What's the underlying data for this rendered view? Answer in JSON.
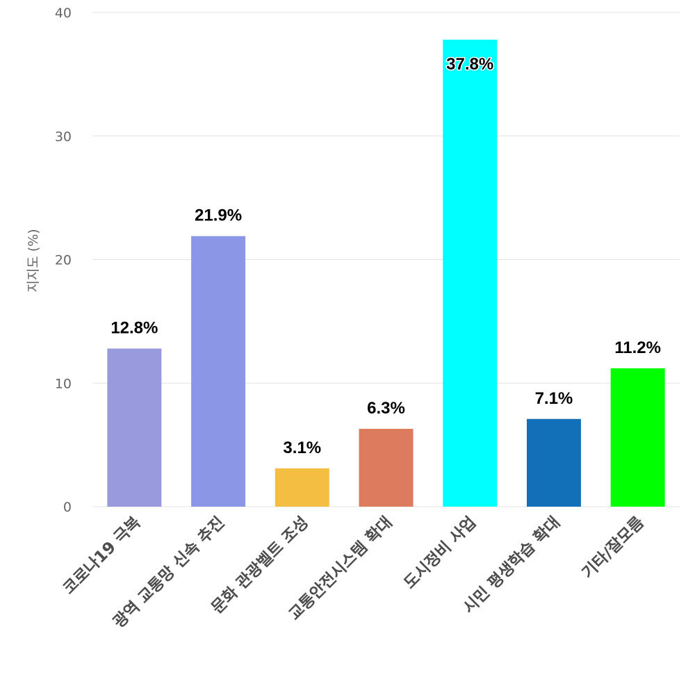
{
  "chart_data": {
    "type": "bar",
    "categories": [
      "코로나19 극복",
      "광역 교통망 신속 추진",
      "문화 관광벨트 조성",
      "교통안전시스템 확대",
      "도시정비 사업",
      "시민 평생학습 확대",
      "기타/잘모름"
    ],
    "values": [
      12.8,
      21.9,
      3.1,
      6.3,
      37.8,
      7.1,
      11.2
    ],
    "data_labels": [
      "12.8%",
      "21.9%",
      "3.1%",
      "6.3%",
      "37.8%",
      "7.1%",
      "11.2%"
    ],
    "colors": [
      "#9999dd",
      "#8c96e6",
      "#f4be42",
      "#dd7b5e",
      "#00ffff",
      "#1170b7",
      "#00ff00"
    ],
    "ylabel": "지지도 (%)",
    "ylim": [
      0,
      40
    ],
    "yticks": [
      0,
      10,
      20,
      30,
      40
    ],
    "grid": true
  }
}
